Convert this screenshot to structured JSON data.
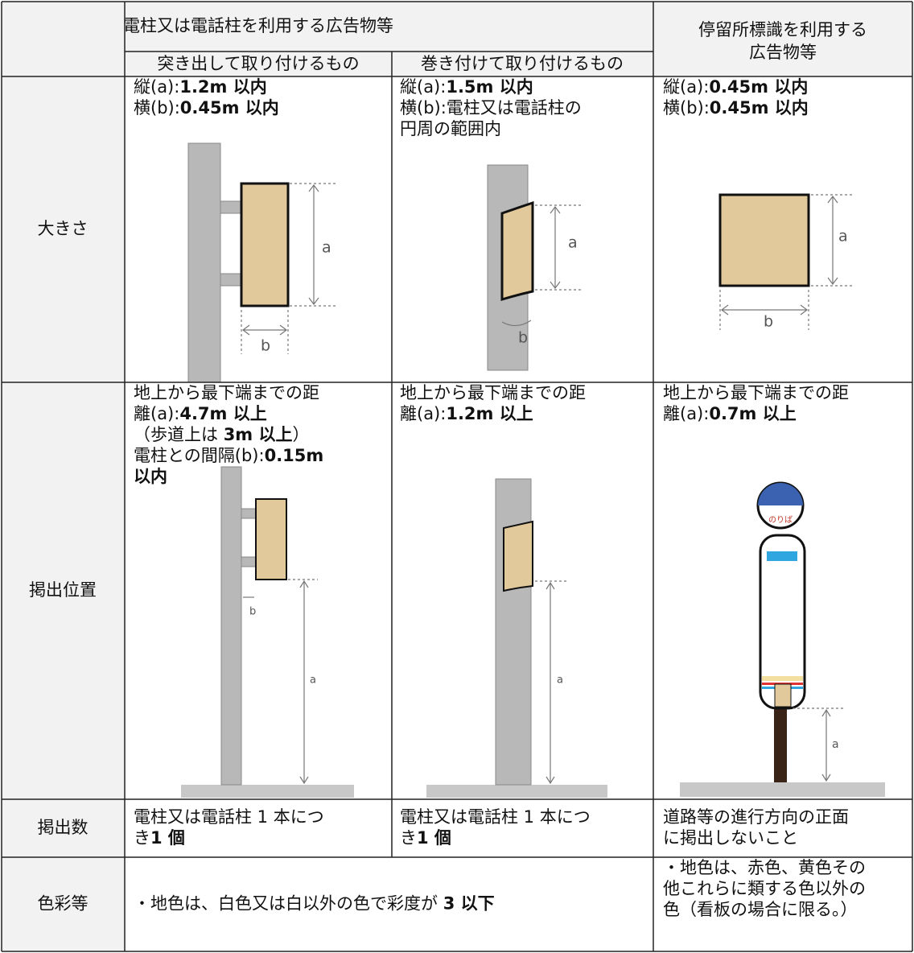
{
  "header": {
    "group": "電柱又は電話柱を利用する広告物等",
    "sub": [
      "突き出して取り付けるもの",
      "巻き付けて取り付けるもの"
    ],
    "bus": [
      "停留所標識を利用する",
      "広告物等"
    ]
  },
  "diagram_labels": {
    "a": "a",
    "b": "b",
    "stop": "のりば"
  },
  "rows": [
    {
      "label": "大きさ",
      "cells": [
        [
          [
            "縦(a):",
            {
              "bold": "1.2m 以内"
            }
          ],
          [
            "横(b):",
            {
              "bold": "0.45m 以内"
            }
          ]
        ],
        [
          [
            "縦(a):",
            {
              "bold": "1.5m 以内"
            }
          ],
          [
            "横(b):電柱又は電話柱の"
          ],
          [
            "円周の範囲内"
          ]
        ],
        [
          [
            "縦(a):",
            {
              "bold": "0.45m 以内"
            }
          ],
          [
            "横(b):",
            {
              "bold": "0.45m 以内"
            }
          ]
        ]
      ]
    },
    {
      "label": "掲出位置",
      "cells": [
        [
          [
            "地上から最下端までの距"
          ],
          [
            "離(a):",
            {
              "bold": "4.7m 以上"
            }
          ],
          [
            "（歩道上は ",
            {
              "bold": "3m 以上"
            },
            "）"
          ],
          [
            "電柱との間隔(b):",
            {
              "bold": "0.15m"
            }
          ],
          [
            {
              "bold": "以内"
            }
          ]
        ],
        [
          [
            "地上から最下端までの距"
          ],
          [
            "離(a):",
            {
              "bold": "1.2m 以上"
            }
          ]
        ],
        [
          [
            "地上から最下端までの距"
          ],
          [
            "離(a):",
            {
              "bold": "0.7m 以上"
            }
          ]
        ]
      ]
    },
    {
      "label": "掲出数",
      "cells": [
        [
          [
            "電柱又は電話柱 1 本につ"
          ],
          [
            "き",
            {
              "bold": "1 個"
            }
          ]
        ],
        [
          [
            "電柱又は電話柱 1 本につ"
          ],
          [
            "き",
            {
              "bold": "1 個"
            }
          ]
        ],
        [
          [
            "道路等の進行方向の正面"
          ],
          [
            "に掲出しないこと"
          ]
        ]
      ]
    },
    {
      "label": "色彩等",
      "cells": [
        [
          [
            "・地色は、白色又は白以外の色で彩度が ",
            {
              "bold": "3 以下"
            }
          ]
        ],
        [
          [
            "・地色は、赤色、黄色その"
          ],
          [
            "他これらに類する色以外の"
          ],
          [
            "色（看板の場合に限る。）"
          ]
        ]
      ]
    }
  ]
}
